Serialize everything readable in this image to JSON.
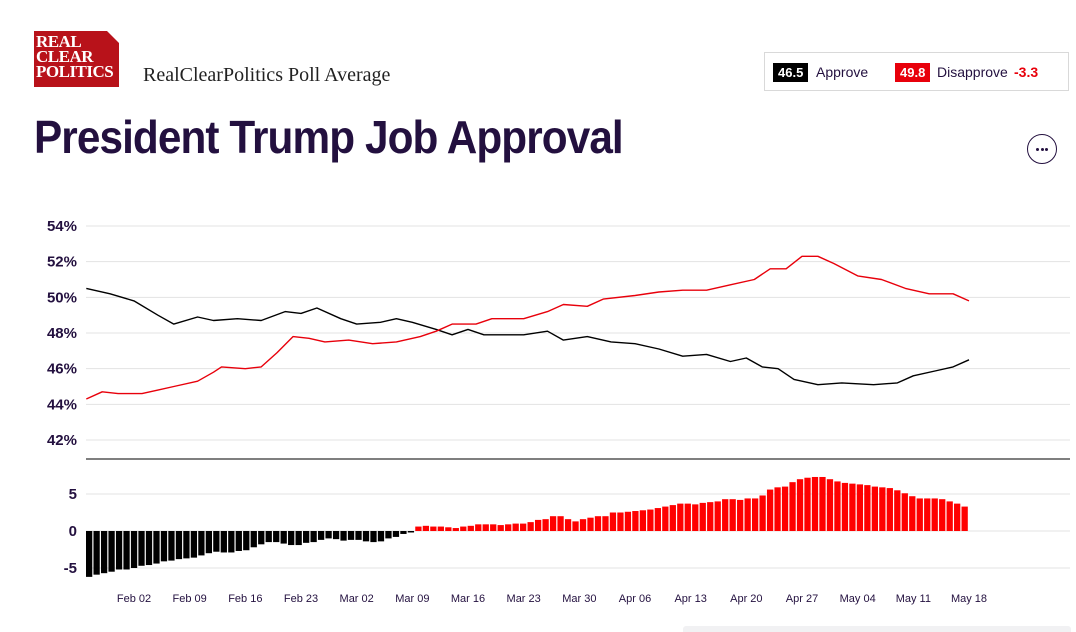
{
  "header": {
    "logo_lines": [
      "REAL",
      "CLEAR",
      "POLITICS"
    ],
    "subtitle": "RealClearPolitics Poll Average",
    "title": "President Trump Job Approval"
  },
  "summary": {
    "approve_value": "46.5",
    "approve_label": "Approve",
    "disapprove_value": "49.8",
    "disapprove_label": "Disapprove",
    "spread": "-3.3",
    "approve_color": "#000000",
    "disapprove_color": "#e8000b"
  },
  "menu": {
    "icon": "more-horizontal-icon"
  },
  "chart_data": {
    "type": "line",
    "x_ticks": [
      "Feb 02",
      "Feb 09",
      "Feb 16",
      "Feb 23",
      "Mar 02",
      "Mar 09",
      "Mar 16",
      "Mar 23",
      "Mar 30",
      "Apr 06",
      "Apr 13",
      "Apr 20",
      "Apr 27",
      "May 04",
      "May 11",
      "May 18"
    ],
    "y_ticks": [
      "54%",
      "52%",
      "50%",
      "48%",
      "46%",
      "44%",
      "42%"
    ],
    "ylim": [
      41,
      55
    ],
    "x_range": [
      "Jan 27",
      "May 18"
    ],
    "grid": true,
    "series": [
      {
        "name": "Approve",
        "color": "#000000",
        "points": [
          [
            "Jan 27",
            50.5
          ],
          [
            "Jan 30",
            50.2
          ],
          [
            "Feb 02",
            49.8
          ],
          [
            "Feb 05",
            49.0
          ],
          [
            "Feb 07",
            48.5
          ],
          [
            "Feb 10",
            48.9
          ],
          [
            "Feb 12",
            48.7
          ],
          [
            "Feb 15",
            48.8
          ],
          [
            "Feb 18",
            48.7
          ],
          [
            "Feb 21",
            49.2
          ],
          [
            "Feb 23",
            49.1
          ],
          [
            "Feb 25",
            49.4
          ],
          [
            "Feb 28",
            48.8
          ],
          [
            "Mar 02",
            48.5
          ],
          [
            "Mar 05",
            48.6
          ],
          [
            "Mar 07",
            48.8
          ],
          [
            "Mar 09",
            48.6
          ],
          [
            "Mar 12",
            48.2
          ],
          [
            "Mar 14",
            47.9
          ],
          [
            "Mar 16",
            48.2
          ],
          [
            "Mar 18",
            47.9
          ],
          [
            "Mar 23",
            47.9
          ],
          [
            "Mar 26",
            48.1
          ],
          [
            "Mar 28",
            47.6
          ],
          [
            "Mar 31",
            47.8
          ],
          [
            "Apr 03",
            47.5
          ],
          [
            "Apr 06",
            47.4
          ],
          [
            "Apr 09",
            47.1
          ],
          [
            "Apr 12",
            46.7
          ],
          [
            "Apr 15",
            46.8
          ],
          [
            "Apr 18",
            46.4
          ],
          [
            "Apr 20",
            46.6
          ],
          [
            "Apr 22",
            46.1
          ],
          [
            "Apr 24",
            46.0
          ],
          [
            "Apr 26",
            45.4
          ],
          [
            "Apr 29",
            45.1
          ],
          [
            "May 02",
            45.2
          ],
          [
            "May 06",
            45.1
          ],
          [
            "May 09",
            45.2
          ],
          [
            "May 11",
            45.6
          ],
          [
            "May 14",
            45.9
          ],
          [
            "May 16",
            46.1
          ],
          [
            "May 18",
            46.5
          ]
        ]
      },
      {
        "name": "Disapprove",
        "color": "#e8000b",
        "points": [
          [
            "Jan 27",
            44.3
          ],
          [
            "Jan 29",
            44.7
          ],
          [
            "Jan 31",
            44.6
          ],
          [
            "Feb 03",
            44.6
          ],
          [
            "Feb 05",
            44.8
          ],
          [
            "Feb 07",
            45.0
          ],
          [
            "Feb 10",
            45.3
          ],
          [
            "Feb 12",
            45.8
          ],
          [
            "Feb 13",
            46.1
          ],
          [
            "Feb 16",
            46.0
          ],
          [
            "Feb 18",
            46.1
          ],
          [
            "Feb 20",
            46.9
          ],
          [
            "Feb 22",
            47.8
          ],
          [
            "Feb 24",
            47.7
          ],
          [
            "Feb 26",
            47.5
          ],
          [
            "Mar 01",
            47.6
          ],
          [
            "Mar 04",
            47.4
          ],
          [
            "Mar 07",
            47.5
          ],
          [
            "Mar 10",
            47.8
          ],
          [
            "Mar 12",
            48.1
          ],
          [
            "Mar 14",
            48.5
          ],
          [
            "Mar 17",
            48.5
          ],
          [
            "Mar 19",
            48.8
          ],
          [
            "Mar 23",
            48.8
          ],
          [
            "Mar 26",
            49.2
          ],
          [
            "Mar 28",
            49.6
          ],
          [
            "Mar 31",
            49.5
          ],
          [
            "Apr 02",
            49.9
          ],
          [
            "Apr 06",
            50.1
          ],
          [
            "Apr 09",
            50.3
          ],
          [
            "Apr 12",
            50.4
          ],
          [
            "Apr 15",
            50.4
          ],
          [
            "Apr 18",
            50.7
          ],
          [
            "Apr 21",
            51.0
          ],
          [
            "Apr 23",
            51.6
          ],
          [
            "Apr 25",
            51.6
          ],
          [
            "Apr 27",
            52.3
          ],
          [
            "Apr 29",
            52.3
          ],
          [
            "May 01",
            51.9
          ],
          [
            "May 04",
            51.2
          ],
          [
            "May 07",
            51.0
          ],
          [
            "May 10",
            50.5
          ],
          [
            "May 13",
            50.2
          ],
          [
            "May 16",
            50.2
          ],
          [
            "May 18",
            49.8
          ]
        ]
      }
    ],
    "spread_panel": {
      "type": "bar",
      "y_ticks": [
        "5",
        "0",
        "-5"
      ],
      "ylim": [
        -6,
        8
      ],
      "positive_color": "#ff0000",
      "negative_color": "#000000",
      "values": [
        -6.2,
        -5.9,
        -5.7,
        -5.5,
        -5.2,
        -5.2,
        -5.0,
        -4.7,
        -4.6,
        -4.4,
        -4.1,
        -4.0,
        -3.8,
        -3.7,
        -3.6,
        -3.3,
        -3.0,
        -2.8,
        -2.9,
        -2.9,
        -2.7,
        -2.6,
        -2.2,
        -1.8,
        -1.5,
        -1.5,
        -1.7,
        -1.9,
        -1.9,
        -1.6,
        -1.5,
        -1.2,
        -1.0,
        -1.1,
        -1.3,
        -1.2,
        -1.2,
        -1.4,
        -1.5,
        -1.4,
        -1.0,
        -0.8,
        -0.4,
        -0.2,
        0.6,
        0.7,
        0.6,
        0.6,
        0.5,
        0.4,
        0.6,
        0.7,
        0.9,
        0.9,
        0.9,
        0.8,
        0.9,
        1.0,
        1.0,
        1.2,
        1.5,
        1.6,
        2.0,
        2.0,
        1.6,
        1.3,
        1.6,
        1.8,
        2.0,
        2.0,
        2.5,
        2.5,
        2.6,
        2.7,
        2.8,
        2.9,
        3.1,
        3.3,
        3.5,
        3.7,
        3.7,
        3.6,
        3.8,
        3.9,
        4.0,
        4.3,
        4.3,
        4.2,
        4.4,
        4.4,
        4.8,
        5.6,
        5.9,
        6.0,
        6.6,
        7.0,
        7.2,
        7.3,
        7.3,
        7.0,
        6.7,
        6.5,
        6.4,
        6.3,
        6.2,
        6.0,
        5.9,
        5.8,
        5.5,
        5.1,
        4.7,
        4.4,
        4.4,
        4.4,
        4.3,
        4.0,
        3.7,
        3.3
      ]
    }
  }
}
